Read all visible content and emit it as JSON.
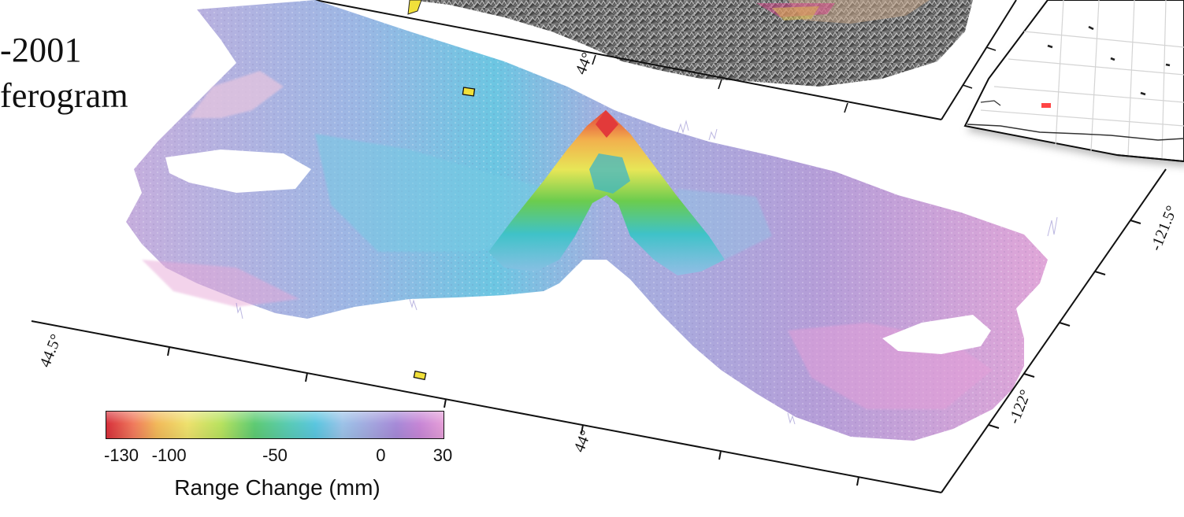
{
  "title": {
    "line1": "-2001",
    "line2": "ferogram"
  },
  "map": {
    "latitude_labels": [
      "44°",
      "44.5°",
      "44°"
    ],
    "longitude_labels": [
      "-121.5°",
      "-122°"
    ]
  },
  "legend": {
    "label": "Range Change (mm)",
    "ticks": [
      "-130",
      "-100",
      "-50",
      "0",
      "30"
    ],
    "tick_values": [
      -130,
      -100,
      -50,
      0,
      30
    ],
    "range": [
      -130,
      30
    ],
    "colors": [
      "#d7303b",
      "#f2b95a",
      "#eee16d",
      "#5ecb73",
      "#5ac6df",
      "#a3a8df",
      "#e59fd8"
    ]
  },
  "inset": {
    "marker_color": "#ff4444"
  }
}
